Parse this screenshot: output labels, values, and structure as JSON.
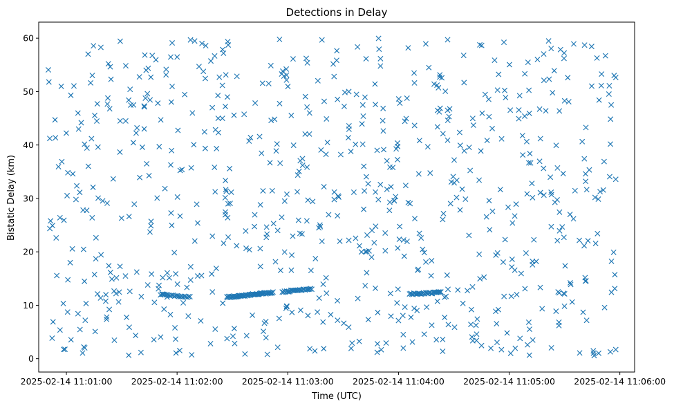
{
  "chart_data": {
    "type": "scatter",
    "title": "Detections in Delay",
    "xlabel": "Time (UTC)",
    "ylabel": "Bistatic Delay (km)",
    "x_range": [
      "2025-02-14 11:00:45",
      "2025-02-14 11:06:08"
    ],
    "ylim": [
      -2.5,
      63
    ],
    "x_ticks": [
      "2025-02-14 11:01:00",
      "2025-02-14 11:02:00",
      "2025-02-14 11:03:00",
      "2025-02-14 11:04:00",
      "2025-02-14 11:05:00",
      "2025-02-14 11:06:00"
    ],
    "y_ticks": [
      0,
      10,
      20,
      30,
      40,
      50,
      60
    ],
    "marker": "x",
    "color": "#1f77b4",
    "grid": false,
    "legend": "none",
    "point_count": 900,
    "background_noise": {
      "distribution": "uniform",
      "time_range": [
        "2025-02-14 11:00:50",
        "2025-02-14 11:05:58"
      ],
      "delay_range": [
        0.5,
        60
      ]
    },
    "tracks": [
      {
        "start": "2025-02-14 11:01:51",
        "end": "2025-02-14 11:02:07",
        "delay_start": 12.0,
        "delay_end": 11.5,
        "points": 22
      },
      {
        "start": "2025-02-14 11:02:27",
        "end": "2025-02-14 11:02:52",
        "delay_start": 11.5,
        "delay_end": 12.4,
        "points": 60
      },
      {
        "start": "2025-02-14 11:02:57",
        "end": "2025-02-14 11:03:13",
        "delay_start": 12.5,
        "delay_end": 13.1,
        "points": 28
      },
      {
        "start": "2025-02-14 11:04:06",
        "end": "2025-02-14 11:04:23",
        "delay_start": 12.1,
        "delay_end": 12.4,
        "points": 30
      }
    ]
  }
}
